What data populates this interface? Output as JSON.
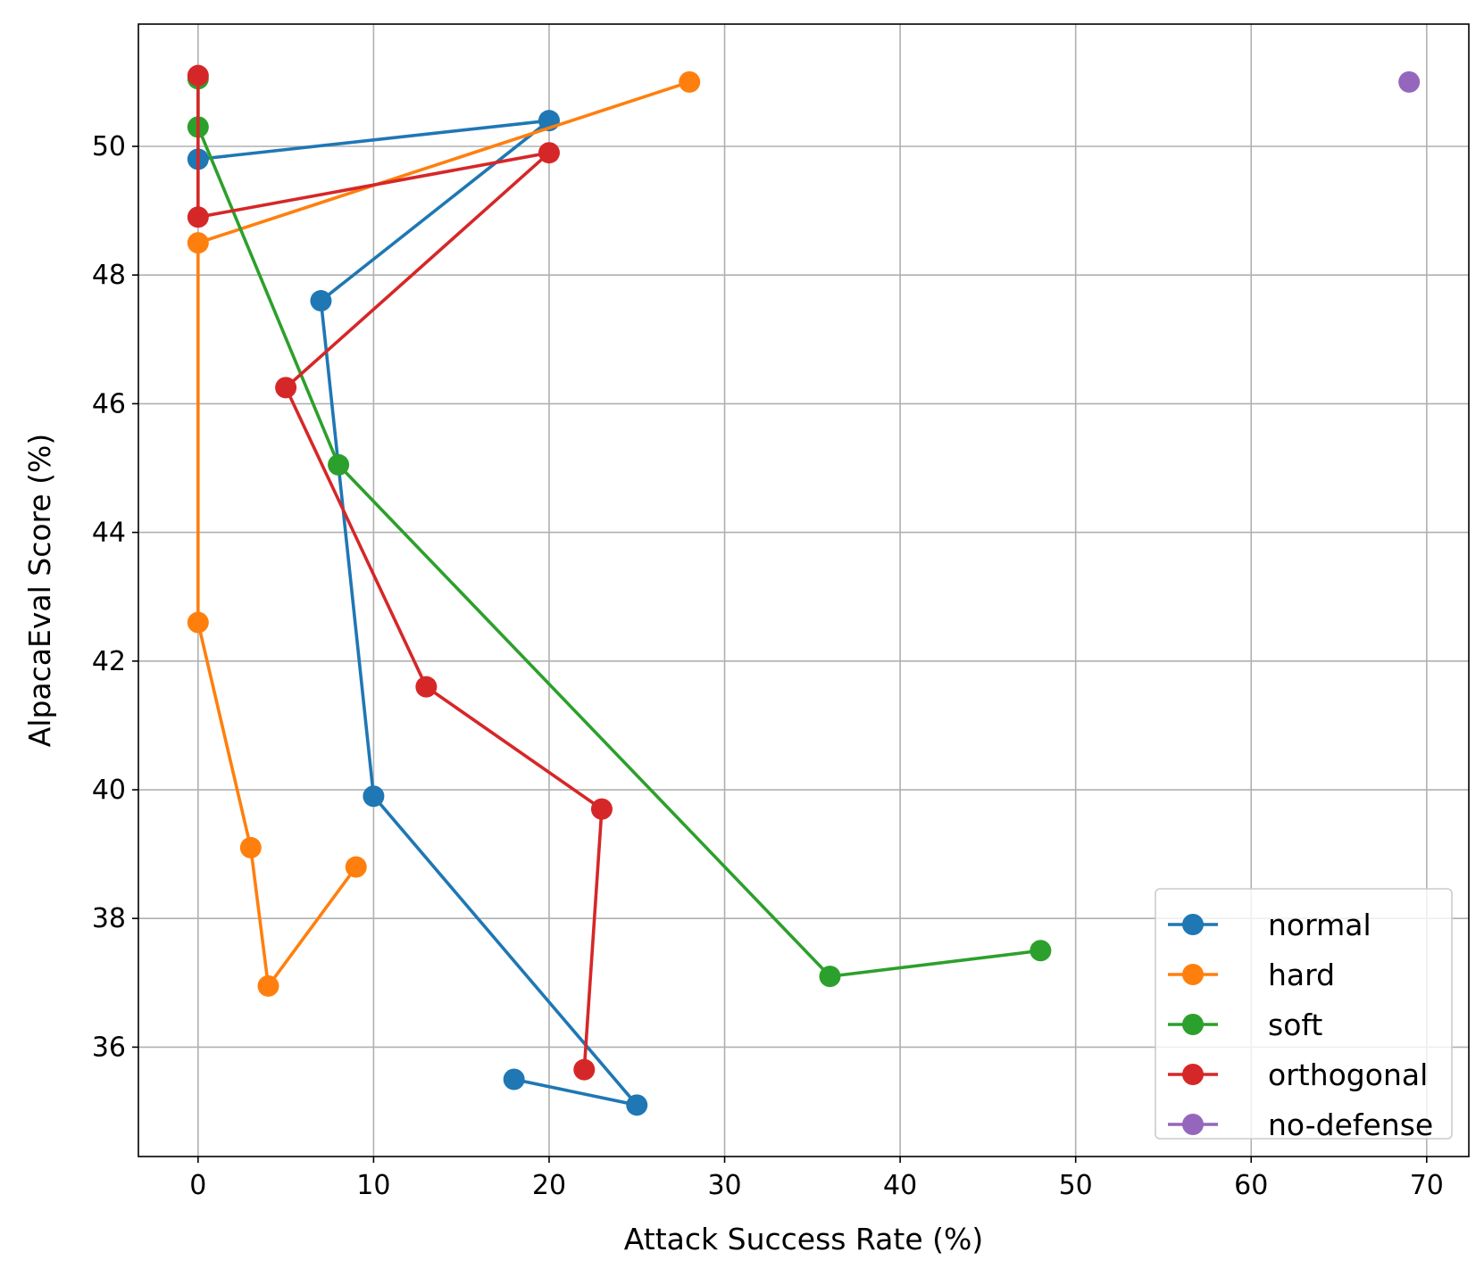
{
  "chart_data": {
    "type": "line",
    "title": "",
    "xlabel": "Attack Success Rate (%)",
    "ylabel": "AlpacaEval Score (%)",
    "xlim": [
      -3.4,
      72.4
    ],
    "ylim": [
      34.3,
      51.9
    ],
    "xticks": [
      0,
      10,
      20,
      30,
      40,
      50,
      60,
      70
    ],
    "yticks": [
      36,
      38,
      40,
      42,
      44,
      46,
      48,
      50
    ],
    "grid": true,
    "legend_position": "lower-right",
    "series": [
      {
        "name": "normal",
        "color": "#1f77b4",
        "x": [
          18,
          25,
          10,
          7,
          20,
          0
        ],
        "y": [
          35.5,
          35.1,
          39.9,
          47.6,
          50.4,
          49.8
        ]
      },
      {
        "name": "hard",
        "color": "#ff7f0e",
        "x": [
          9,
          4,
          3,
          0,
          0,
          28
        ],
        "y": [
          38.8,
          36.95,
          39.1,
          42.6,
          48.5,
          51.0
        ]
      },
      {
        "name": "soft",
        "color": "#2ca02c",
        "x": [
          48,
          36,
          8,
          0,
          0
        ],
        "y": [
          37.5,
          37.1,
          45.05,
          50.3,
          51.05
        ]
      },
      {
        "name": "orthogonal",
        "color": "#d62728",
        "x": [
          22,
          23,
          13,
          5,
          20,
          0,
          0
        ],
        "y": [
          35.65,
          39.7,
          41.6,
          46.25,
          49.9,
          48.9,
          51.1
        ]
      },
      {
        "name": "no-defense",
        "color": "#9467bd",
        "x": [
          69
        ],
        "y": [
          51.0
        ]
      }
    ]
  }
}
